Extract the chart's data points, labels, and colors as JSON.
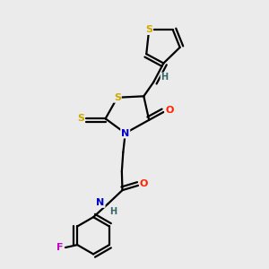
{
  "background_color": "#ebebeb",
  "atom_colors": {
    "C": "#000000",
    "N": "#0000cc",
    "O": "#ff2200",
    "S": "#ccaa00",
    "F": "#cc00cc",
    "H": "#336666"
  },
  "figsize": [
    3.0,
    3.0
  ],
  "dpi": 100
}
